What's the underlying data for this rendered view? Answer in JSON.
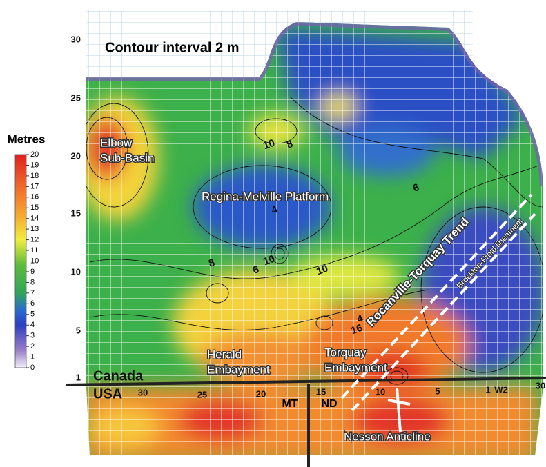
{
  "map_title": "Contour interval 2 m",
  "legend": {
    "title": "Metres",
    "ticks": [
      0,
      1,
      2,
      3,
      4,
      5,
      6,
      7,
      8,
      9,
      10,
      11,
      12,
      13,
      14,
      15,
      16,
      17,
      18,
      19,
      20
    ]
  },
  "township_labels": [
    30,
    25,
    20,
    15,
    10,
    5,
    1
  ],
  "range_labels": [
    30,
    25,
    20,
    15,
    10,
    5,
    1,
    "W2",
    30
  ],
  "countries": [
    "Canada",
    "USA"
  ],
  "states": [
    "MT",
    "ND"
  ],
  "regions": {
    "elbow": [
      "Elbow",
      "Sub-Basin"
    ],
    "regina": "Regina-Melville Platform",
    "herald": [
      "Herald",
      "Embayment"
    ],
    "torquay": [
      "Torquay",
      "Embayment"
    ],
    "nesson": "Nesson Anticline",
    "trend": "Rocanville-Torquay Trend",
    "lineament": "Brockton-Froid lineament"
  },
  "contour_labels": [
    10,
    8,
    4,
    6,
    8,
    10,
    6,
    10,
    4,
    16
  ]
}
